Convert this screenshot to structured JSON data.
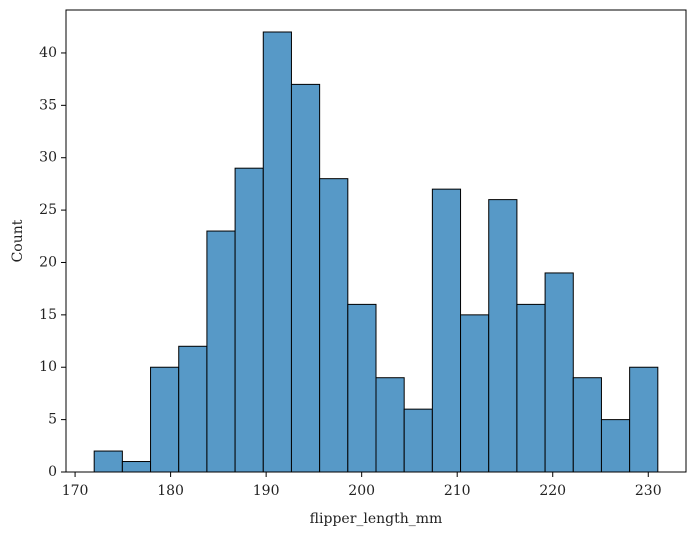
{
  "chart_data": {
    "type": "histogram",
    "xlabel": "flipper_length_mm",
    "ylabel": "Count",
    "bins": [
      172,
      174.95,
      177.9,
      180.85,
      183.8,
      186.75,
      189.7,
      192.65,
      195.6,
      198.55,
      201.5,
      204.45,
      207.4,
      210.35,
      213.3,
      216.25,
      219.2,
      222.15,
      225.1,
      228.05,
      231
    ],
    "values": [
      2,
      1,
      10,
      12,
      23,
      29,
      42,
      37,
      28,
      16,
      9,
      6,
      27,
      15,
      26,
      16,
      19,
      9,
      5,
      10
    ],
    "color": "#5799c7",
    "edgecolor": "#000000",
    "xlim": [
      169.05,
      233.95
    ],
    "xticks": [
      170,
      180,
      190,
      200,
      210,
      220,
      230
    ],
    "ylim": [
      0,
      44.1
    ],
    "yticks": [
      0,
      5,
      10,
      15,
      20,
      25,
      30,
      35,
      40
    ]
  }
}
